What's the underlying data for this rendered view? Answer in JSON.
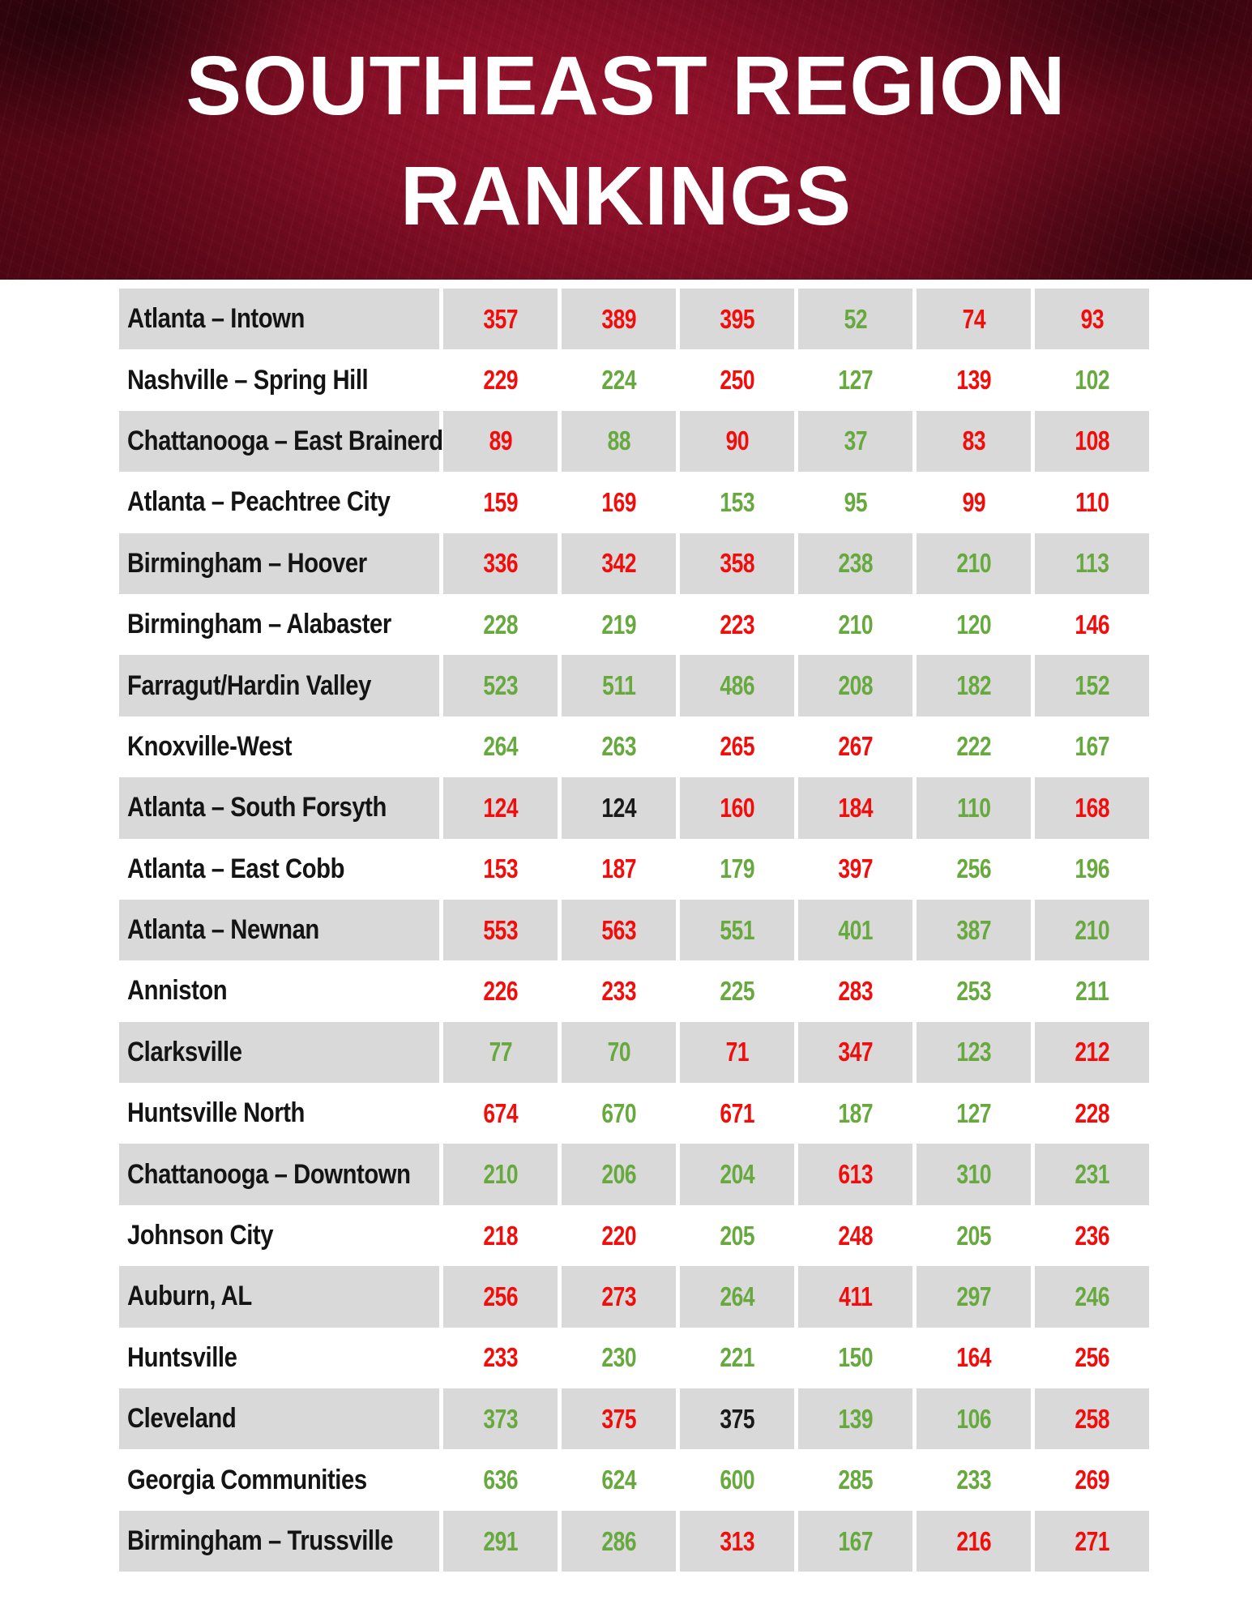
{
  "title": {
    "line1": "SOUTHEAST REGION",
    "line2": "RANKINGS"
  },
  "palette": {
    "banner_base": "#570716",
    "banner_bright": "#70091f",
    "banner_dark": "#20030b",
    "banner_accent": "#c11c3c",
    "row_gray": "#d9d9d9",
    "label_color": "#141414",
    "value_red": "#f20d0d",
    "value_green": "#68a93f",
    "value_black": "#1a1a1a",
    "title_color": "#ffffff"
  },
  "chart_data": {
    "type": "table",
    "title": "SOUTHEAST REGION RANKINGS",
    "notes": "Columns are unlabeled in the image; each row has 6 values color-coded red, green or black.",
    "color_codes": {
      "r": "red",
      "g": "green",
      "k": "black"
    },
    "rows": [
      {
        "label": "Atlanta – Intown",
        "values": [
          357,
          389,
          395,
          52,
          74,
          93
        ],
        "colors": [
          "r",
          "r",
          "r",
          "g",
          "r",
          "r"
        ]
      },
      {
        "label": "Nashville – Spring Hill",
        "values": [
          229,
          224,
          250,
          127,
          139,
          102
        ],
        "colors": [
          "r",
          "g",
          "r",
          "g",
          "r",
          "g"
        ]
      },
      {
        "label": "Chattanooga – East Brainerd",
        "values": [
          89,
          88,
          90,
          37,
          83,
          108
        ],
        "colors": [
          "r",
          "g",
          "r",
          "g",
          "r",
          "r"
        ]
      },
      {
        "label": "Atlanta – Peachtree City",
        "values": [
          159,
          169,
          153,
          95,
          99,
          110
        ],
        "colors": [
          "r",
          "r",
          "g",
          "g",
          "r",
          "r"
        ]
      },
      {
        "label": "Birmingham – Hoover",
        "values": [
          336,
          342,
          358,
          238,
          210,
          113
        ],
        "colors": [
          "r",
          "r",
          "r",
          "g",
          "g",
          "g"
        ]
      },
      {
        "label": "Birmingham – Alabaster",
        "values": [
          228,
          219,
          223,
          210,
          120,
          146
        ],
        "colors": [
          "g",
          "g",
          "r",
          "g",
          "g",
          "r"
        ]
      },
      {
        "label": "Farragut/Hardin Valley",
        "values": [
          523,
          511,
          486,
          208,
          182,
          152
        ],
        "colors": [
          "g",
          "g",
          "g",
          "g",
          "g",
          "g"
        ]
      },
      {
        "label": "Knoxville-West",
        "values": [
          264,
          263,
          265,
          267,
          222,
          167
        ],
        "colors": [
          "g",
          "g",
          "r",
          "r",
          "g",
          "g"
        ]
      },
      {
        "label": "Atlanta – South Forsyth",
        "values": [
          124,
          124,
          160,
          184,
          110,
          168
        ],
        "colors": [
          "r",
          "k",
          "r",
          "r",
          "g",
          "r"
        ]
      },
      {
        "label": "Atlanta – East Cobb",
        "values": [
          153,
          187,
          179,
          397,
          256,
          196
        ],
        "colors": [
          "r",
          "r",
          "g",
          "r",
          "g",
          "g"
        ]
      },
      {
        "label": "Atlanta – Newnan",
        "values": [
          553,
          563,
          551,
          401,
          387,
          210
        ],
        "colors": [
          "r",
          "r",
          "g",
          "g",
          "g",
          "g"
        ]
      },
      {
        "label": "Anniston",
        "values": [
          226,
          233,
          225,
          283,
          253,
          211
        ],
        "colors": [
          "r",
          "r",
          "g",
          "r",
          "g",
          "g"
        ]
      },
      {
        "label": "Clarksville",
        "values": [
          77,
          70,
          71,
          347,
          123,
          212
        ],
        "colors": [
          "g",
          "g",
          "r",
          "r",
          "g",
          "r"
        ]
      },
      {
        "label": "Huntsville North",
        "values": [
          674,
          670,
          671,
          187,
          127,
          228
        ],
        "colors": [
          "r",
          "g",
          "r",
          "g",
          "g",
          "r"
        ]
      },
      {
        "label": "Chattanooga – Downtown",
        "values": [
          210,
          206,
          204,
          613,
          310,
          231
        ],
        "colors": [
          "g",
          "g",
          "g",
          "r",
          "g",
          "g"
        ]
      },
      {
        "label": "Johnson City",
        "values": [
          218,
          220,
          205,
          248,
          205,
          236
        ],
        "colors": [
          "r",
          "r",
          "g",
          "r",
          "g",
          "r"
        ]
      },
      {
        "label": "Auburn, AL",
        "values": [
          256,
          273,
          264,
          411,
          297,
          246
        ],
        "colors": [
          "r",
          "r",
          "g",
          "r",
          "g",
          "g"
        ]
      },
      {
        "label": "Huntsville",
        "values": [
          233,
          230,
          221,
          150,
          164,
          256
        ],
        "colors": [
          "r",
          "g",
          "g",
          "g",
          "r",
          "r"
        ]
      },
      {
        "label": "Cleveland",
        "values": [
          373,
          375,
          375,
          139,
          106,
          258
        ],
        "colors": [
          "g",
          "r",
          "k",
          "g",
          "g",
          "r"
        ]
      },
      {
        "label": "Georgia Communities",
        "values": [
          636,
          624,
          600,
          285,
          233,
          269
        ],
        "colors": [
          "g",
          "g",
          "g",
          "g",
          "g",
          "r"
        ]
      },
      {
        "label": "Birmingham – Trussville",
        "values": [
          291,
          286,
          313,
          167,
          216,
          271
        ],
        "colors": [
          "g",
          "g",
          "r",
          "g",
          "r",
          "r"
        ]
      }
    ]
  }
}
